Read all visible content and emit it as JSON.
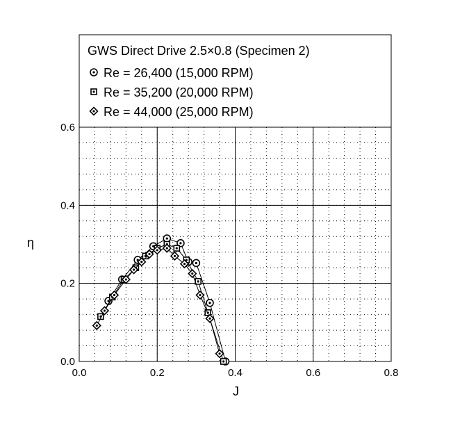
{
  "chart_data": {
    "type": "scatter",
    "title": "GWS Direct Drive 2.5×0.8 (Specimen 2)",
    "xlabel": "J",
    "ylabel": "η",
    "xlim": [
      0.0,
      0.8
    ],
    "ylim": [
      0.0,
      0.6
    ],
    "xticks": [
      0.0,
      0.2,
      0.4,
      0.6,
      0.8
    ],
    "yticks": [
      0.0,
      0.2,
      0.4,
      0.6
    ],
    "xtick_labels": [
      "0.0",
      "0.2",
      "0.4",
      "0.6",
      "0.8"
    ],
    "ytick_labels": [
      "0.0",
      "0.2",
      "0.4",
      "0.6"
    ],
    "grid": true,
    "legend_position": "top",
    "series": [
      {
        "name": "Re = 26,400 (15,000 RPM)",
        "marker": "circle-dot",
        "points": [
          [
            0.075,
            0.155
          ],
          [
            0.11,
            0.21
          ],
          [
            0.15,
            0.26
          ],
          [
            0.19,
            0.295
          ],
          [
            0.225,
            0.315
          ],
          [
            0.26,
            0.303
          ],
          [
            0.28,
            0.255
          ],
          [
            0.3,
            0.252
          ],
          [
            0.335,
            0.15
          ],
          [
            0.375,
            0.0
          ]
        ]
      },
      {
        "name": "Re = 35,200 (20,000 RPM)",
        "marker": "square-dot",
        "points": [
          [
            0.055,
            0.115
          ],
          [
            0.085,
            0.165
          ],
          [
            0.115,
            0.21
          ],
          [
            0.145,
            0.24
          ],
          [
            0.17,
            0.27
          ],
          [
            0.2,
            0.29
          ],
          [
            0.225,
            0.3
          ],
          [
            0.25,
            0.29
          ],
          [
            0.275,
            0.26
          ],
          [
            0.305,
            0.205
          ],
          [
            0.33,
            0.125
          ],
          [
            0.37,
            0.0
          ]
        ]
      },
      {
        "name": "Re = 44,000 (25,000 RPM)",
        "marker": "diamond-dot",
        "points": [
          [
            0.045,
            0.092
          ],
          [
            0.065,
            0.13
          ],
          [
            0.09,
            0.17
          ],
          [
            0.12,
            0.21
          ],
          [
            0.14,
            0.235
          ],
          [
            0.16,
            0.255
          ],
          [
            0.18,
            0.275
          ],
          [
            0.2,
            0.285
          ],
          [
            0.225,
            0.29
          ],
          [
            0.245,
            0.27
          ],
          [
            0.27,
            0.25
          ],
          [
            0.29,
            0.225
          ],
          [
            0.31,
            0.17
          ],
          [
            0.335,
            0.11
          ],
          [
            0.36,
            0.02
          ]
        ]
      }
    ]
  }
}
